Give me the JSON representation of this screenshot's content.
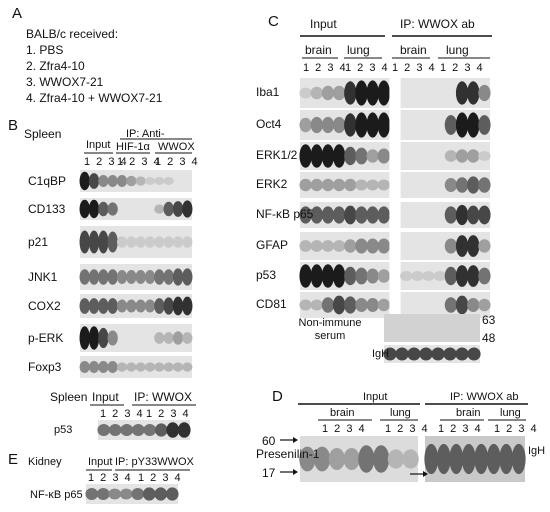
{
  "panel_a": {
    "letter": "A",
    "heading": "BALB/c received:",
    "items": [
      "1. PBS",
      "2. Zfra4-10",
      "3. WWOX7-21",
      "4. Zfra4-10 + WWOX7-21"
    ]
  },
  "panel_b": {
    "letter": "B",
    "tissue": "Spleen",
    "input": "Input",
    "ip": "IP: Anti-",
    "antibodies": [
      "HIF-1α",
      "WWOX"
    ],
    "lanes": [
      "1 2 3 4",
      "1 2 3 4",
      "1 2 3 4"
    ],
    "rows": [
      "C1qBP",
      "CD133",
      "p21",
      "JNK1",
      "COX2",
      "p-ERK",
      "Foxp3"
    ],
    "p53_blot": {
      "tissue": "Spleen",
      "input": "Input",
      "ip": "IP: WWOX",
      "lanes": [
        "1 2 3 4",
        "1 2 3 4"
      ],
      "row": "p53"
    }
  },
  "panel_e": {
    "letter": "E",
    "tissue": "Kidney",
    "input": "Input",
    "ip": "IP: pY33WWOX",
    "lanes": [
      "1 2 3 4",
      "1 2 3 4"
    ],
    "row": "NF-κB p65"
  },
  "panel_c": {
    "letter": "C",
    "input": "Input",
    "ip": "IP: WWOX ab",
    "tissues": [
      "brain",
      "lung",
      "brain",
      "lung"
    ],
    "lanes": [
      "1 2 3 4",
      "1 2 3 4",
      "1 2 3 4",
      "1 2 3 4"
    ],
    "rows": [
      "Iba1",
      "Oct4",
      "ERK1/2",
      "ERK2",
      "NF-κB p65",
      "GFAP",
      "p53",
      "CD81"
    ],
    "control_label": "Non-immune serum",
    "markers": [
      "63",
      "48"
    ],
    "igh": "IgH"
  },
  "panel_d": {
    "letter": "D",
    "input": "Input",
    "ip": "IP: WWOX ab",
    "tissues": [
      "brain",
      "lung",
      "brain",
      "lung"
    ],
    "lanes": [
      "1 2 3 4",
      "1 2 3 4",
      "1 2 3 4",
      "1 2 3 4"
    ],
    "markers": [
      "60",
      "17"
    ],
    "protein": "Presenilin-1",
    "igh": "IgH"
  }
}
